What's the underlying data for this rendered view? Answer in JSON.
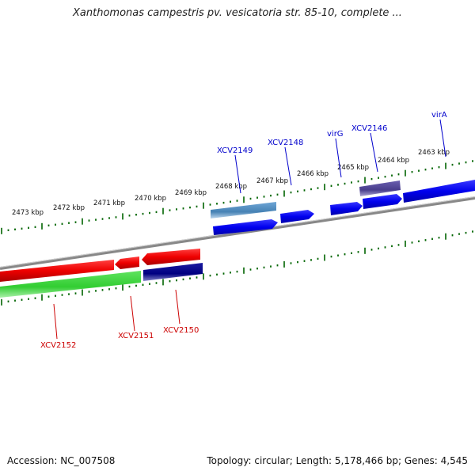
{
  "title": "Xanthomonas campestris pv. vesicatoria str. 85-10, complete ...",
  "footer": {
    "accession": "Accession: NC_007508",
    "summary": "Topology: circular; Length: 5,178,466 bp; Genes: 4,545"
  },
  "kbp_labels": [
    "2463 kbp",
    "2464 kbp",
    "2465 kbp",
    "2466 kbp",
    "2467 kbp",
    "2468 kbp",
    "2469 kbp",
    "2470 kbp",
    "2471 kbp",
    "2472 kbp",
    "2473 kbp"
  ],
  "genes_top": [
    {
      "name": "virA",
      "color": "#0000cc"
    },
    {
      "name": "XCV2146",
      "color": "#0000cc"
    },
    {
      "name": "virG",
      "color": "#0000cc"
    },
    {
      "name": "XCV2148",
      "color": "#0000cc"
    },
    {
      "name": "XCV2149",
      "color": "#0000cc"
    }
  ],
  "genes_bottom": [
    {
      "name": "XCV2150",
      "color": "#cc0000"
    },
    {
      "name": "XCV2151",
      "color": "#cc0000"
    },
    {
      "name": "XCV2152",
      "color": "#cc0000"
    }
  ],
  "colors": {
    "forward_gene": "#0000ee",
    "forward_gene_alt": "#4682b4",
    "forward_gene_dark": "#483d8b",
    "reverse_gene": "#ee0000",
    "reverse_green": "#32cd32",
    "reverse_navy": "#000080",
    "backbone": "#888888",
    "tick": "#006400"
  }
}
